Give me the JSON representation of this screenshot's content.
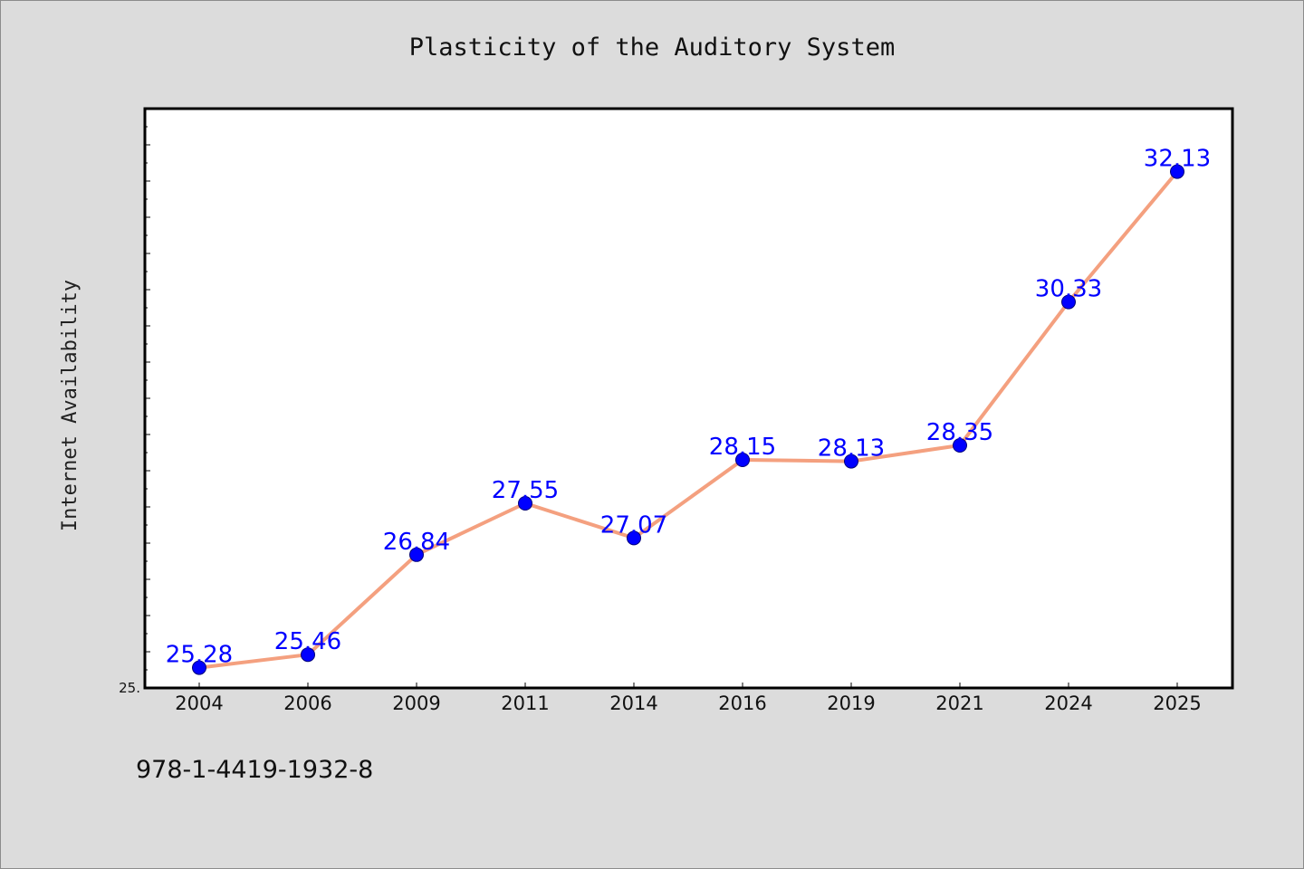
{
  "chart_data": {
    "type": "line",
    "title": "Plasticity of the Auditory System",
    "xlabel": "",
    "ylabel": "Internet Availability",
    "categories": [
      "2004",
      "2006",
      "2009",
      "2011",
      "2014",
      "2016",
      "2019",
      "2021",
      "2024",
      "2025"
    ],
    "series": [
      {
        "values": [
          25.28,
          25.46,
          26.84,
          27.55,
          27.07,
          28.15,
          28.13,
          28.35,
          30.33,
          32.13
        ],
        "data_labels": [
          "25.28",
          "25.46",
          "26.84",
          "27.55",
          "27.07",
          "28.15",
          "28.13",
          "28.35",
          "30.33",
          "32.13"
        ]
      }
    ],
    "y_min_label": "25.",
    "ylim": [
      25.0,
      33.0
    ],
    "grid": false,
    "legend": "none",
    "colors": {
      "line": "#f4a07f",
      "marker": "#0000ff",
      "data_label": "#0000ff",
      "plot_bg": "#ffffff",
      "outer_bg": "#dcdcdc",
      "axis": "#000000"
    }
  },
  "footer": {
    "isbn": "978-1-4419-1932-8"
  }
}
